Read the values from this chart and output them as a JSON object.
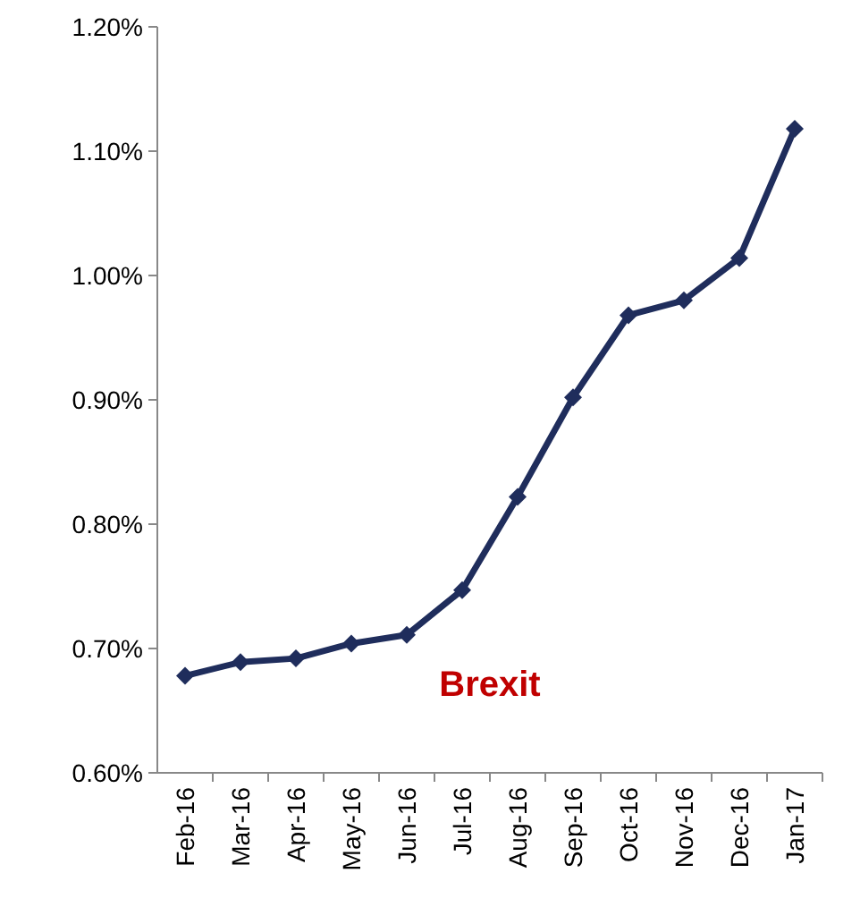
{
  "chart_data": {
    "type": "line",
    "categories": [
      "Feb-16",
      "Mar-16",
      "Apr-16",
      "May-16",
      "Jun-16",
      "Jul-16",
      "Aug-16",
      "Sep-16",
      "Oct-16",
      "Nov-16",
      "Dec-16",
      "Jan-17"
    ],
    "series": [
      {
        "color": "#1f2d5c",
        "values": [
          0.678,
          0.689,
          0.692,
          0.704,
          0.711,
          0.747,
          0.822,
          0.902,
          0.968,
          0.98,
          1.014,
          1.118
        ]
      }
    ],
    "ylim": [
      0.6,
      1.2
    ],
    "yticks": [
      {
        "value": 0.6,
        "label": "0.60%"
      },
      {
        "value": 0.7,
        "label": "0.70%"
      },
      {
        "value": 0.8,
        "label": "0.80%"
      },
      {
        "value": 0.9,
        "label": "0.90%"
      },
      {
        "value": 1.0,
        "label": "1.00%"
      },
      {
        "value": 1.1,
        "label": "1.10%"
      },
      {
        "value": 1.2,
        "label": "1.20%"
      }
    ],
    "annotations": [
      "Brexit"
    ],
    "marker": "diamond",
    "line_style": "solid",
    "grid": false
  }
}
